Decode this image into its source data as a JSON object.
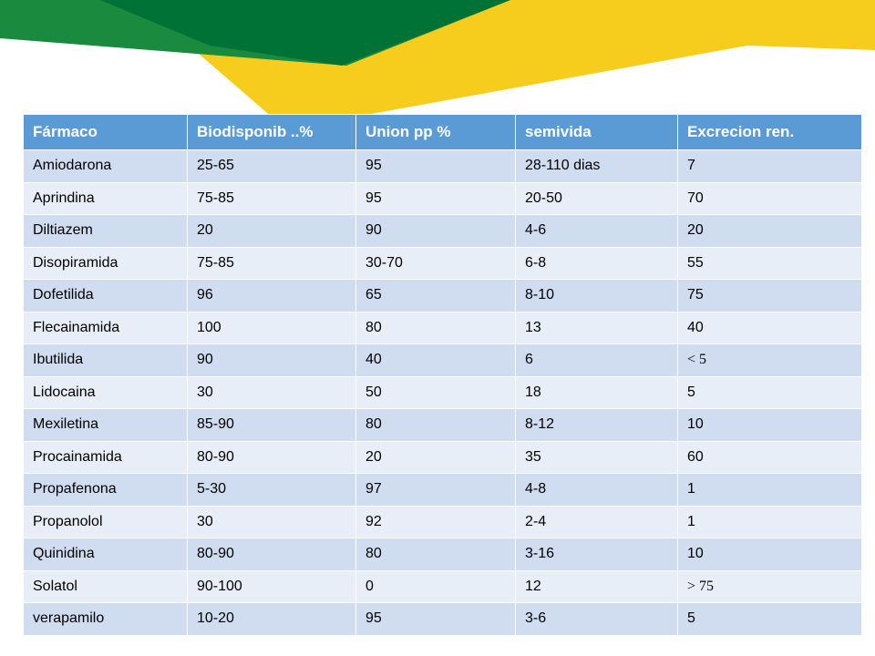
{
  "colors": {
    "dark_green": "#007236",
    "mid_green": "#1a8a3f",
    "yellow": "#f7cd1d",
    "header_blue": "#5b9bd5",
    "row_dark": "#d0dcef",
    "row_light": "#e8eef7"
  },
  "table": {
    "headers": [
      "Fármaco",
      "Biodisponib ..%",
      "Union pp %",
      "semivida",
      "Excrecion  ren."
    ],
    "rows": [
      [
        "Amiodarona",
        "25-65",
        "95",
        "28-110 dias",
        "7"
      ],
      [
        "Aprindina",
        "75-85",
        "95",
        "20-50",
        "70"
      ],
      [
        "Diltiazem",
        "20",
        "90",
        "4-6",
        "20"
      ],
      [
        "Disopiramida",
        "75-85",
        "30-70",
        "6-8",
        "55"
      ],
      [
        "Dofetilida",
        "96",
        "65",
        "8-10",
        "75"
      ],
      [
        "Flecainamida",
        "100",
        "80",
        "13",
        "40"
      ],
      [
        "Ibutilida",
        "90",
        "40",
        "6",
        "< 5"
      ],
      [
        "Lidocaina",
        "30",
        "50",
        "18",
        "5"
      ],
      [
        "Mexiletina",
        "85-90",
        "80",
        "8-12",
        "10"
      ],
      [
        "Procainamida",
        "80-90",
        "20",
        "35",
        "60"
      ],
      [
        "Propafenona",
        "5-30",
        "97",
        "4-8",
        "1"
      ],
      [
        "Propanolol",
        "30",
        "92",
        "2-4",
        "1"
      ],
      [
        "Quinidina",
        "80-90",
        "80",
        "3-16",
        "10"
      ],
      [
        "Solatol",
        "90-100",
        "0",
        "12",
        "> 75"
      ],
      [
        "verapamilo",
        "10-20",
        "95",
        "3-6",
        "5"
      ]
    ]
  }
}
